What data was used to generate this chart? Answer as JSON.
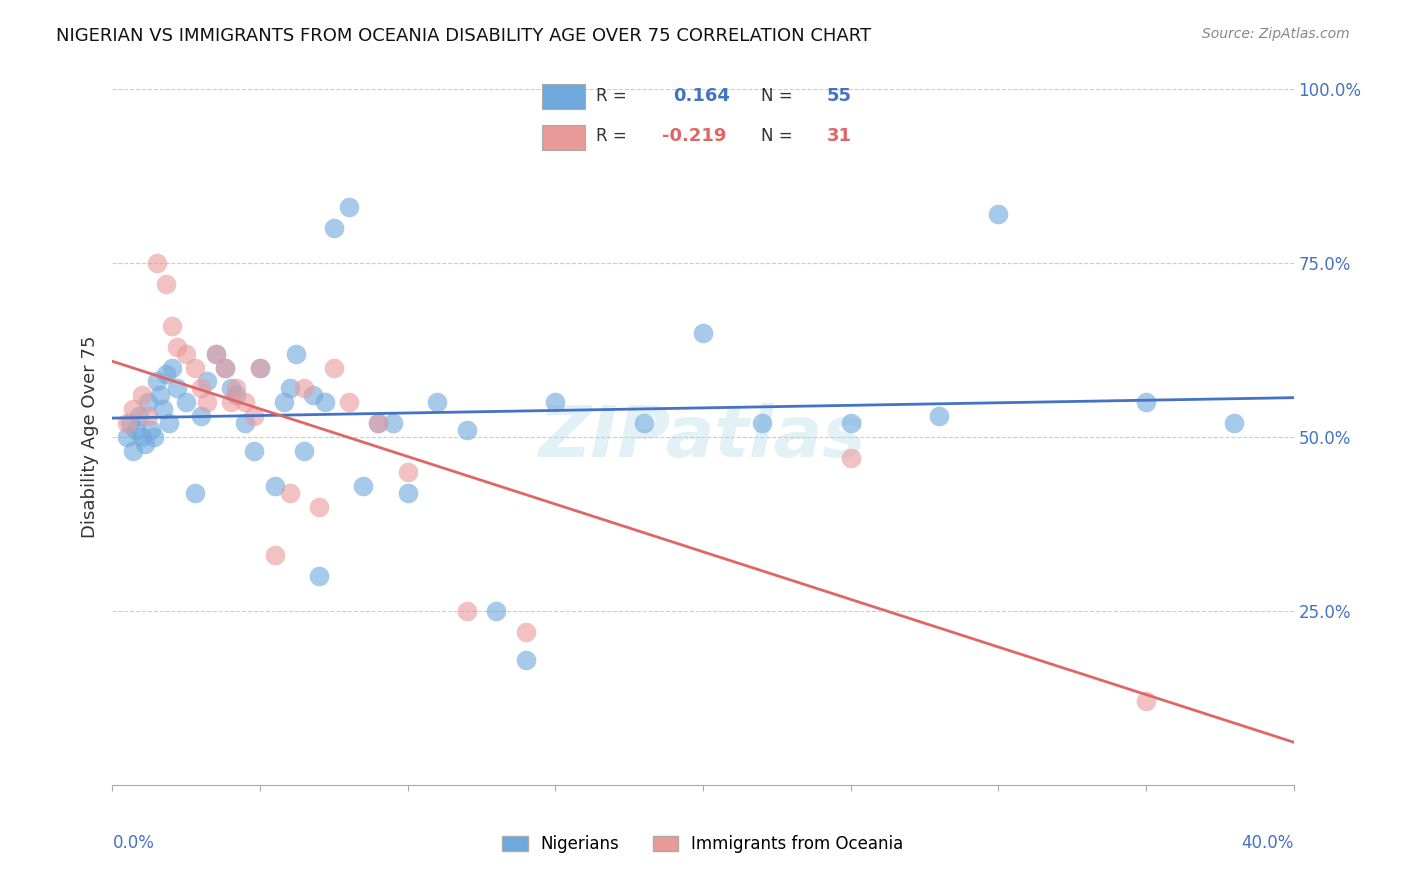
{
  "title": "NIGERIAN VS IMMIGRANTS FROM OCEANIA DISABILITY AGE OVER 75 CORRELATION CHART",
  "source": "Source: ZipAtlas.com",
  "ylabel": "Disability Age Over 75",
  "watermark": "ZIPatlas",
  "legend1_r": "0.164",
  "legend1_n": "55",
  "legend2_r": "-0.219",
  "legend2_n": "31",
  "blue_color": "#6fa8dc",
  "pink_color": "#ea9999",
  "line_blue": "#4472c4",
  "line_pink": "#e06666",
  "axis_label_color": "#4472c4",
  "xlim": [
    0.0,
    0.4
  ],
  "ylim": [
    0.0,
    1.0
  ],
  "nigerians_x": [
    0.005,
    0.006,
    0.007,
    0.008,
    0.009,
    0.01,
    0.011,
    0.012,
    0.013,
    0.014,
    0.015,
    0.016,
    0.017,
    0.018,
    0.019,
    0.02,
    0.022,
    0.025,
    0.028,
    0.03,
    0.032,
    0.035,
    0.038,
    0.04,
    0.042,
    0.045,
    0.048,
    0.05,
    0.055,
    0.058,
    0.06,
    0.062,
    0.065,
    0.068,
    0.07,
    0.072,
    0.075,
    0.08,
    0.085,
    0.09,
    0.095,
    0.1,
    0.11,
    0.12,
    0.13,
    0.14,
    0.15,
    0.18,
    0.2,
    0.22,
    0.25,
    0.28,
    0.3,
    0.35,
    0.38
  ],
  "nigerians_y": [
    0.5,
    0.52,
    0.48,
    0.51,
    0.53,
    0.5,
    0.49,
    0.55,
    0.51,
    0.5,
    0.58,
    0.56,
    0.54,
    0.59,
    0.52,
    0.6,
    0.57,
    0.55,
    0.42,
    0.53,
    0.58,
    0.62,
    0.6,
    0.57,
    0.56,
    0.52,
    0.48,
    0.6,
    0.43,
    0.55,
    0.57,
    0.62,
    0.48,
    0.56,
    0.3,
    0.55,
    0.8,
    0.83,
    0.43,
    0.52,
    0.52,
    0.42,
    0.55,
    0.51,
    0.25,
    0.18,
    0.55,
    0.52,
    0.65,
    0.52,
    0.52,
    0.53,
    0.82,
    0.55,
    0.52
  ],
  "oceania_x": [
    0.005,
    0.007,
    0.01,
    0.012,
    0.015,
    0.018,
    0.02,
    0.022,
    0.025,
    0.028,
    0.03,
    0.032,
    0.035,
    0.038,
    0.04,
    0.042,
    0.045,
    0.048,
    0.05,
    0.055,
    0.06,
    0.065,
    0.07,
    0.075,
    0.08,
    0.09,
    0.1,
    0.12,
    0.14,
    0.25,
    0.35
  ],
  "oceania_y": [
    0.52,
    0.54,
    0.56,
    0.53,
    0.75,
    0.72,
    0.66,
    0.63,
    0.62,
    0.6,
    0.57,
    0.55,
    0.62,
    0.6,
    0.55,
    0.57,
    0.55,
    0.53,
    0.6,
    0.33,
    0.42,
    0.57,
    0.4,
    0.6,
    0.55,
    0.52,
    0.45,
    0.25,
    0.22,
    0.47,
    0.12
  ]
}
